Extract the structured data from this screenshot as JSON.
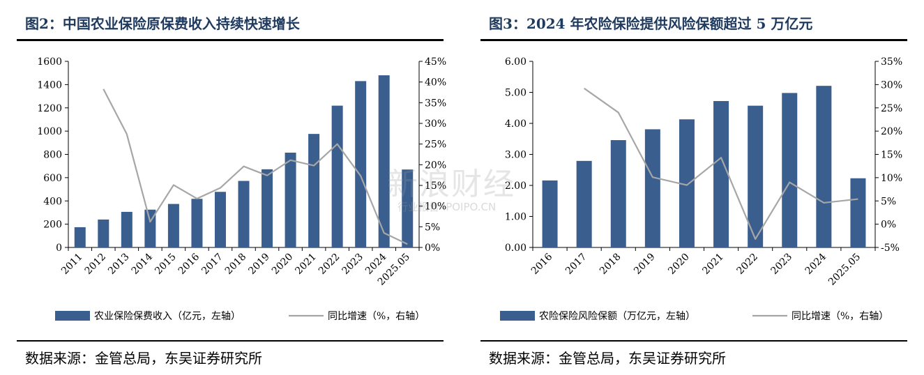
{
  "colors": {
    "bar": "#3a5f8f",
    "line": "#a6a6a6",
    "title": "#1f3a5f"
  },
  "watermark": {
    "main": "新浪财经",
    "sub": "行业报告 IPOIPO.CN"
  },
  "chart_data": [
    {
      "type": "bar",
      "title": "图2：中国农业保险原保费收入持续快速增长",
      "categories": [
        "2011",
        "2012",
        "2013",
        "2014",
        "2015",
        "2016",
        "2017",
        "2018",
        "2019",
        "2020",
        "2021",
        "2022",
        "2023",
        "2024",
        "2025.05"
      ],
      "series": [
        {
          "name": "农业保险保费收入（亿元，左轴）",
          "type": "bar",
          "axis": "left",
          "values": [
            174,
            240,
            306,
            325,
            374,
            418,
            478,
            572,
            672,
            815,
            976,
            1219,
            1430,
            1480,
            670
          ]
        },
        {
          "name": "同比增速（%，右轴）",
          "type": "line",
          "axis": "right",
          "values": [
            null,
            38.3,
            27.4,
            6.2,
            15.1,
            11.8,
            14.4,
            19.6,
            17.4,
            21.1,
            19.8,
            25.0,
            17.3,
            3.5,
            0.8
          ]
        }
      ],
      "yleft": {
        "min": 0,
        "max": 1600,
        "step": 200,
        "ticks": [
          "0",
          "200",
          "400",
          "600",
          "800",
          "1000",
          "1200",
          "1400",
          "1600"
        ]
      },
      "yright": {
        "min": 0,
        "max": 45,
        "step": 5,
        "ticks": [
          "0%",
          "5%",
          "10%",
          "15%",
          "20%",
          "25%",
          "30%",
          "35%",
          "40%",
          "45%"
        ]
      },
      "legend": {
        "position": "bottom"
      },
      "source": "数据来源：金管总局，东吴证券研究所"
    },
    {
      "type": "bar",
      "title": "图3：2024 年农险保险提供风险保额超过 5 万亿元",
      "categories": [
        "2016",
        "2017",
        "2018",
        "2019",
        "2020",
        "2021",
        "2022",
        "2023",
        "2024",
        "2025.05"
      ],
      "series": [
        {
          "name": "农险保险风险保额（万亿元，左轴）",
          "type": "bar",
          "axis": "left",
          "values": [
            2.16,
            2.79,
            3.46,
            3.81,
            4.13,
            4.72,
            4.57,
            4.98,
            5.21,
            2.23
          ]
        },
        {
          "name": "同比增速（%，右轴）",
          "type": "line",
          "axis": "right",
          "values": [
            null,
            29.2,
            24.0,
            10.1,
            8.4,
            14.3,
            -3.2,
            9.0,
            4.6,
            5.4
          ]
        }
      ],
      "yleft": {
        "min": 0,
        "max": 6,
        "step": 1,
        "ticks": [
          "0.00",
          "1.00",
          "2.00",
          "3.00",
          "4.00",
          "5.00",
          "6.00"
        ]
      },
      "yright": {
        "min": -5,
        "max": 35,
        "step": 5,
        "ticks": [
          "-5%",
          "0%",
          "5%",
          "10%",
          "15%",
          "20%",
          "25%",
          "30%",
          "35%"
        ]
      },
      "legend": {
        "position": "bottom"
      },
      "source": "数据来源：金管总局，东吴证券研究所"
    }
  ]
}
